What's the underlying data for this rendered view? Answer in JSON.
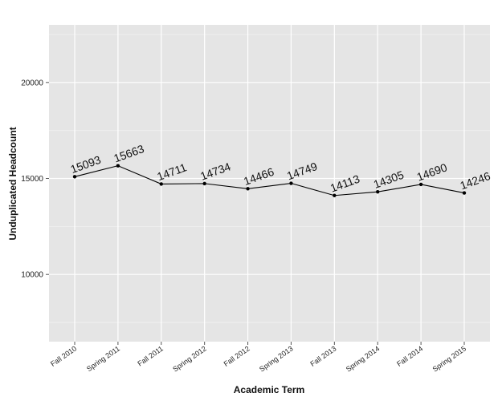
{
  "chart_data": {
    "type": "line",
    "title": "",
    "xlabel": "Academic Term",
    "ylabel": "Unduplicated Headcount",
    "categories": [
      "Fall 2010",
      "Spring 2011",
      "Fall 2011",
      "Spring 2012",
      "Fall 2012",
      "Spring 2013",
      "Fall 2013",
      "Spring 2014",
      "Fall 2014",
      "Spring 2015"
    ],
    "values": [
      15093,
      15663,
      14711,
      14734,
      14466,
      14749,
      14113,
      14305,
      14690,
      14246
    ],
    "ylim": [
      6500,
      23000
    ],
    "yticks": [
      10000,
      15000,
      20000
    ],
    "grid": true,
    "legend": "none"
  },
  "colors": {
    "panel_background": "#e5e5e5",
    "grid_major": "#ffffff",
    "grid_minor": "#f2f2f2",
    "line": "#000000",
    "point": "#000000"
  }
}
